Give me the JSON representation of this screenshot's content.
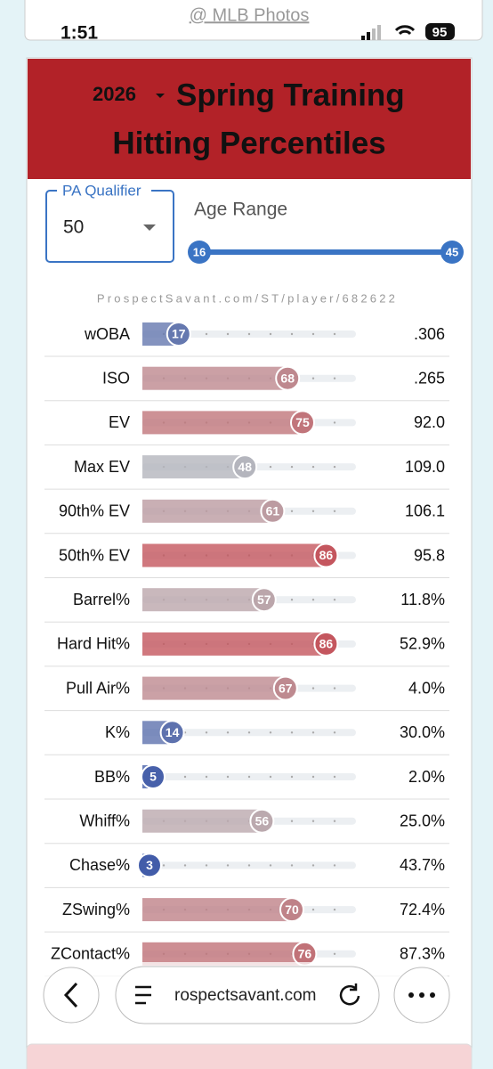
{
  "status_bar": {
    "source": "@ MLB Photos",
    "time": "1:51",
    "battery": "95"
  },
  "header": {
    "season": "2026",
    "title_line1": "Spring Training",
    "title_line2": "Hitting Percentiles"
  },
  "filters": {
    "pa_label": "PA Qualifier",
    "pa_value": "50",
    "age_label": "Age Range",
    "age_min": "16",
    "age_max": "45"
  },
  "player_url": "ProspectSavant.com/ST/player/682622",
  "rows": [
    {
      "label": "wOBA",
      "percentile": 17,
      "value": ".306"
    },
    {
      "label": "ISO",
      "percentile": 68,
      "value": ".265"
    },
    {
      "label": "EV",
      "percentile": 75,
      "value": "92.0"
    },
    {
      "label": "Max EV",
      "percentile": 48,
      "value": "109.0"
    },
    {
      "label": "90th% EV",
      "percentile": 61,
      "value": "106.1"
    },
    {
      "label": "50th% EV",
      "percentile": 86,
      "value": "95.8"
    },
    {
      "label": "Barrel%",
      "percentile": 57,
      "value": "11.8%"
    },
    {
      "label": "Hard Hit%",
      "percentile": 86,
      "value": "52.9%"
    },
    {
      "label": "Pull Air%",
      "percentile": 67,
      "value": "4.0%"
    },
    {
      "label": "K%",
      "percentile": 14,
      "value": "30.0%"
    },
    {
      "label": "BB%",
      "percentile": 5,
      "value": "2.0%"
    },
    {
      "label": "Whiff%",
      "percentile": 56,
      "value": "25.0%"
    },
    {
      "label": "Chase%",
      "percentile": 3,
      "value": "43.7%"
    },
    {
      "label": "ZSwing%",
      "percentile": 70,
      "value": "72.4%"
    },
    {
      "label": "ZContact%",
      "percentile": 76,
      "value": "87.3%"
    }
  ],
  "browser": {
    "url": "rospectsavant.com"
  }
}
